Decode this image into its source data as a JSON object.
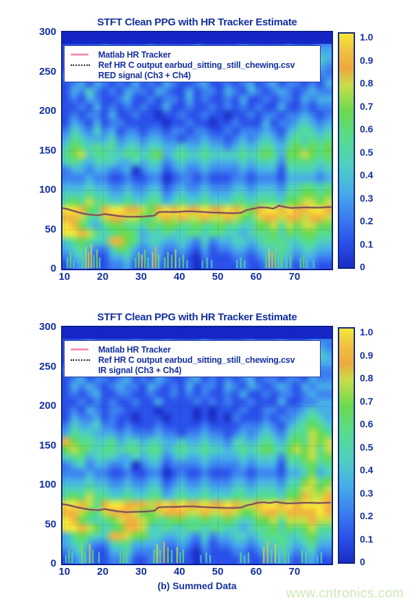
{
  "caption": "(b) Summed Data",
  "watermark": "www.cntronics.com",
  "colors": {
    "text_navy": "#15309d",
    "axis_border": "#0c1f8f",
    "top_band": "#1427c6",
    "tracker_pink": "#f493ae",
    "tracker_dark": "#4b4526",
    "gridline": "rgba(20,40,120,0.12)",
    "watermark_green": "#cde8b2",
    "legend_border": "#2b3f9f"
  },
  "colormap": {
    "stops": [
      [
        0.0,
        "#1a2cc4"
      ],
      [
        0.11,
        "#2b52ea"
      ],
      [
        0.22,
        "#3c80f0"
      ],
      [
        0.33,
        "#47aee8"
      ],
      [
        0.44,
        "#4fd0c0"
      ],
      [
        0.56,
        "#58dc8a"
      ],
      [
        0.67,
        "#6cd94f"
      ],
      [
        0.78,
        "#c8de48"
      ],
      [
        0.85,
        "#eea83e"
      ],
      [
        0.93,
        "#f0c340"
      ],
      [
        1.0,
        "#f4e838"
      ]
    ]
  },
  "chart_data": [
    {
      "type": "heatmap",
      "title": "STFT Clean PPG with HR Tracker Estimate",
      "legend": [
        "Matlab HR Tracker",
        "Ref HR C output earbud_sitting_still_chewing.csv",
        "RED signal (Ch3 + Ch4)"
      ],
      "x_ticks": [
        10,
        20,
        30,
        40,
        50,
        60,
        70
      ],
      "y_ticks": [
        300,
        250,
        200,
        150,
        100,
        50,
        0
      ],
      "x_range": [
        9.5,
        79.7
      ],
      "y_range": [
        0,
        300
      ],
      "value_range": [
        0,
        1
      ],
      "colorbar_ticks": [
        "1.0",
        "0.9",
        "0.8",
        "0.7",
        "0.6",
        "0.5",
        "0.4",
        "0.3",
        "0.2",
        "0.1",
        "0"
      ],
      "grid_encoding": "rows top(300) to bottom(0), 35 columns spanning x_range, value = digit/9",
      "grid": [
        "00000000000000000000000000000000000",
        "11111211111211111211111211111211122",
        "12121131121113121121121122121112233",
        "11212111211311211212111311211213343",
        "12112132111212113112121211121112232",
        "21121121123112111211311212121211122",
        "12313212131213211231121231231221213",
        "13242121322132113122132132123212322",
        "12132112311212213121121311212213233",
        "11213121212113112112121212113112122",
        "12122131121101121121101121221223212",
        "13213122111110112110112111312234323",
        "24324231221221221221121222321345434",
        "35433342332332212232212323432454545",
        "46545453443443343343323434543565656",
        "56745544554563454454444545653667656",
        "45434443343442343343333434442555545",
        "23323322302331232232222323331444434",
        "22232211211220122121112212221333323",
        "33343322322331232232223323332445545",
        "44454433433442343343334434443556656",
        "56575544544553454454445545554667767",
        "99865899887689898898898768998988998",
        "88754788776578787787787657887887887",
        "98643566554656655655655446675767766",
        "99875456653445445545544345564656655",
        "45654488653443343242334434555445544",
        "34532246532332232131223323445434433",
        "23421133422231121021112212334323322",
        "12321122311221111011111211223212211"
      ],
      "tracker_series": {
        "name": "HR tracker (pink) + Ref HR (dark dotted)",
        "points": [
          [
            9.5,
            77
          ],
          [
            11,
            75.5
          ],
          [
            13,
            72.5
          ],
          [
            15,
            70
          ],
          [
            17,
            68.5
          ],
          [
            19,
            68
          ],
          [
            20.5,
            69.5
          ],
          [
            22,
            68.5
          ],
          [
            24,
            67
          ],
          [
            26,
            66.3
          ],
          [
            28,
            66
          ],
          [
            30,
            66.2
          ],
          [
            32,
            66.8
          ],
          [
            33.5,
            67.5
          ],
          [
            34.5,
            71.8
          ],
          [
            36,
            72.3
          ],
          [
            38,
            72
          ],
          [
            40,
            72.4
          ],
          [
            42,
            73
          ],
          [
            44,
            72.8
          ],
          [
            46,
            72.2
          ],
          [
            48,
            71.6
          ],
          [
            50,
            71.2
          ],
          [
            52,
            70.8
          ],
          [
            54,
            70.6
          ],
          [
            56,
            71
          ],
          [
            57.5,
            74.5
          ],
          [
            59,
            76
          ],
          [
            61,
            78
          ],
          [
            63,
            77.6
          ],
          [
            64.5,
            76.4
          ],
          [
            66,
            80.2
          ],
          [
            67.5,
            78.4
          ],
          [
            69,
            77.2
          ],
          [
            71,
            77.6
          ],
          [
            73,
            78
          ],
          [
            75,
            77.6
          ],
          [
            77,
            77.8
          ],
          [
            79.5,
            78.4
          ]
        ]
      },
      "bottom_streaks": [
        [
          10.8,
          4,
          0.5
        ],
        [
          11.6,
          6,
          0.65
        ],
        [
          12.4,
          3,
          0.4
        ],
        [
          14.8,
          5,
          0.55
        ],
        [
          15.6,
          8,
          0.75
        ],
        [
          16.3,
          6,
          0.9
        ],
        [
          17,
          9,
          0.8
        ],
        [
          17.7,
          5,
          0.6
        ],
        [
          18.5,
          7,
          0.7
        ],
        [
          19.2,
          4,
          0.5
        ],
        [
          28.6,
          4,
          0.55
        ],
        [
          29.4,
          6,
          0.7
        ],
        [
          30.2,
          5,
          0.8
        ],
        [
          31,
          7,
          0.65
        ],
        [
          31.8,
          4,
          0.5
        ],
        [
          33,
          6,
          0.75
        ],
        [
          33.8,
          8,
          0.85
        ],
        [
          34.6,
          5,
          0.6
        ],
        [
          36.2,
          4,
          0.55
        ],
        [
          37,
          6,
          0.7
        ],
        [
          38,
          5,
          0.6
        ],
        [
          39,
          7,
          0.75
        ],
        [
          40,
          4,
          0.5
        ],
        [
          41,
          5,
          0.65
        ],
        [
          42,
          3,
          0.45
        ],
        [
          46,
          3,
          0.4
        ],
        [
          47.2,
          4,
          0.5
        ],
        [
          48.4,
          3,
          0.45
        ],
        [
          55,
          3,
          0.45
        ],
        [
          56,
          4,
          0.55
        ],
        [
          57,
          3,
          0.4
        ],
        [
          62.6,
          5,
          0.6
        ],
        [
          63.4,
          7,
          0.8
        ],
        [
          64.2,
          6,
          0.9
        ],
        [
          65,
          8,
          0.7
        ],
        [
          65.8,
          5,
          0.55
        ],
        [
          66.6,
          6,
          0.65
        ],
        [
          68,
          4,
          0.5
        ],
        [
          69,
          5,
          0.6
        ],
        [
          71.6,
          4,
          0.55
        ],
        [
          72.4,
          5,
          0.65
        ],
        [
          73.2,
          3,
          0.45
        ],
        [
          75,
          3,
          0.4
        ]
      ]
    },
    {
      "type": "heatmap",
      "title": "STFT Clean PPG with HR Tracker Estimate",
      "legend": [
        "Matlab HR Tracker",
        "Ref HR C output earbud_sitting_still_chewing.csv",
        "IR signal (Ch3 + Ch4)"
      ],
      "x_ticks": [
        10,
        20,
        30,
        40,
        50,
        60,
        70
      ],
      "y_ticks": [
        300,
        250,
        200,
        150,
        100,
        50,
        0
      ],
      "x_range": [
        9.5,
        79.7
      ],
      "y_range": [
        0,
        300
      ],
      "value_range": [
        0,
        1
      ],
      "colorbar_ticks": [
        "1.0",
        "0.9",
        "0.8",
        "0.7",
        "0.6",
        "0.5",
        "0.4",
        "0.3",
        "0.2",
        "0.1",
        "0"
      ],
      "grid_encoding": "rows top(300) to bottom(0), 35 columns spanning x_range, value = digit/9",
      "grid": [
        "00000000000000000000000000000000000",
        "11121111121112111121111121112111222",
        "12112131211211221131121121221112332",
        "11221121121311212121131121121213443",
        "12112113211211213121121211211212233",
        "21121121121131112112112122112111222",
        "12312212312132112312121231221221322",
        "13232123221321213122132132123213233",
        "12123112211211212121121311212212322",
        "11212121121131111212121121113112233",
        "12132122111101111010111211221223433",
        "13223121101110111010102111212234543",
        "24334221211121111121111222321345654",
        "35443332322232212232212323432455765",
        "86554453443443343343324434543565767",
        "67654554554553454454434545654676757",
        "45534443343442343343333434442556756",
        "23423322302331222232222323331445645",
        "22232211211220121121112212221334634",
        "33343322322331232232223323332446756",
        "44454433433442343343334434443557767",
        "56575544544553454454445545554668778",
        "99875899888789898898898778998989998",
        "88765788876678887787787667887888898",
        "98654567887655665565565446675777877",
        "99876456887445445545544345564656755",
        "35654488766443343242334434555445644",
        "34532245533332232131223323445434533",
        "23421133422231121021112212334323422",
        "12321122311221111011111211223212311"
      ],
      "tracker_series": {
        "name": "HR tracker (pink) + Ref HR (dark dotted)",
        "points": [
          [
            9.5,
            75.5
          ],
          [
            11,
            74.5
          ],
          [
            13,
            72
          ],
          [
            15,
            70
          ],
          [
            17,
            68.5
          ],
          [
            19,
            68
          ],
          [
            20.5,
            69.5
          ],
          [
            22,
            68
          ],
          [
            24,
            66.5
          ],
          [
            26,
            65.5
          ],
          [
            28,
            65.8
          ],
          [
            30,
            66
          ],
          [
            32,
            66.5
          ],
          [
            33.5,
            67.2
          ],
          [
            34.5,
            71.5
          ],
          [
            36,
            72
          ],
          [
            38,
            72
          ],
          [
            40,
            72.3
          ],
          [
            42,
            72.8
          ],
          [
            44,
            72.6
          ],
          [
            46,
            72
          ],
          [
            48,
            71.5
          ],
          [
            50,
            71.2
          ],
          [
            52,
            70.8
          ],
          [
            54,
            70.8
          ],
          [
            56,
            71.2
          ],
          [
            57.5,
            74
          ],
          [
            59,
            75.5
          ],
          [
            60.5,
            77.5
          ],
          [
            62,
            78
          ],
          [
            63.5,
            77
          ],
          [
            65,
            78.5
          ],
          [
            66.5,
            77.5
          ],
          [
            68,
            76.5
          ],
          [
            70,
            76.8
          ],
          [
            72,
            77.2
          ],
          [
            74,
            77.5
          ],
          [
            76,
            77
          ],
          [
            78,
            77.3
          ],
          [
            79.5,
            77.6
          ]
        ]
      },
      "bottom_streaks": [
        [
          10.4,
          3,
          0.45
        ],
        [
          11.2,
          5,
          0.6
        ],
        [
          12,
          4,
          0.5
        ],
        [
          14.6,
          6,
          0.7
        ],
        [
          15.4,
          4,
          0.55
        ],
        [
          16.6,
          7,
          0.8
        ],
        [
          17.4,
          5,
          0.6
        ],
        [
          19,
          4,
          0.5
        ],
        [
          24.6,
          5,
          0.6
        ],
        [
          25.4,
          4,
          0.7
        ],
        [
          26.2,
          6,
          0.55
        ],
        [
          33.4,
          5,
          0.65
        ],
        [
          34.2,
          7,
          0.8
        ],
        [
          35,
          5,
          0.6
        ],
        [
          36,
          8,
          0.9
        ],
        [
          37,
          6,
          0.7
        ],
        [
          38,
          5,
          0.55
        ],
        [
          39.4,
          6,
          0.75
        ],
        [
          40.2,
          4,
          0.5
        ],
        [
          41,
          5,
          0.6
        ],
        [
          45.6,
          3,
          0.4
        ],
        [
          47,
          4,
          0.5
        ],
        [
          48,
          3,
          0.45
        ],
        [
          56,
          4,
          0.55
        ],
        [
          57,
          3,
          0.45
        ],
        [
          58,
          4,
          0.5
        ],
        [
          62,
          6,
          0.75
        ],
        [
          63,
          8,
          0.9
        ],
        [
          64,
          5,
          0.6
        ],
        [
          65,
          7,
          0.8
        ],
        [
          66,
          4,
          0.55
        ],
        [
          67.6,
          5,
          0.65
        ],
        [
          68.4,
          4,
          0.5
        ],
        [
          72,
          5,
          0.6
        ],
        [
          73,
          4,
          0.55
        ],
        [
          76,
          3,
          0.4
        ],
        [
          77,
          4,
          0.5
        ]
      ]
    }
  ]
}
